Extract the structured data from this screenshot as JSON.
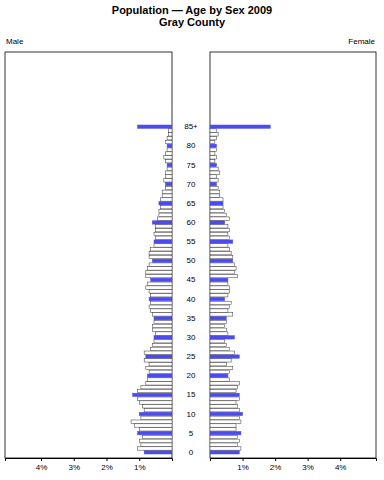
{
  "chart_data": {
    "type": "population_pyramid",
    "title": "Population — Age by Sex 2009",
    "subtitle": "Gray County",
    "categories": [
      "0",
      null,
      null,
      null,
      null,
      "5",
      null,
      null,
      null,
      null,
      "10",
      null,
      null,
      null,
      null,
      "15",
      null,
      null,
      null,
      null,
      "20",
      null,
      null,
      null,
      null,
      "25",
      null,
      null,
      null,
      null,
      "30",
      null,
      null,
      null,
      null,
      "35",
      null,
      null,
      null,
      null,
      "40",
      null,
      null,
      null,
      null,
      "45",
      null,
      null,
      null,
      null,
      "50",
      null,
      null,
      null,
      null,
      "55",
      null,
      null,
      null,
      null,
      "60",
      null,
      null,
      null,
      null,
      "65",
      null,
      null,
      null,
      null,
      "70",
      null,
      null,
      null,
      null,
      "75",
      null,
      null,
      null,
      null,
      "80",
      null,
      null,
      null,
      null,
      "85+"
    ],
    "series": [
      {
        "name": "Male",
        "color": "#4b4bef",
        "values": [
          0.85,
          1.05,
          0.95,
          1.0,
          0.9,
          1.05,
          1.0,
          1.15,
          1.25,
          0.95,
          1.0,
          0.85,
          0.9,
          1.0,
          1.05,
          1.2,
          1.05,
          0.95,
          0.8,
          0.75,
          0.75,
          0.7,
          0.8,
          0.7,
          0.85,
          0.8,
          0.85,
          0.65,
          0.6,
          0.55,
          0.55,
          0.5,
          0.6,
          0.6,
          0.55,
          0.55,
          0.6,
          0.65,
          0.7,
          0.65,
          0.7,
          0.65,
          0.7,
          0.8,
          0.75,
          0.65,
          0.8,
          0.8,
          0.75,
          0.7,
          0.6,
          0.7,
          0.7,
          0.65,
          0.55,
          0.55,
          0.5,
          0.55,
          0.5,
          0.5,
          0.6,
          0.45,
          0.4,
          0.4,
          0.35,
          0.4,
          0.35,
          0.3,
          0.3,
          0.2,
          0.2,
          0.25,
          0.2,
          0.2,
          0.15,
          0.15,
          0.2,
          0.25,
          0.2,
          0.15,
          0.15,
          0.2,
          0.15,
          0.1,
          0.1,
          1.05
        ]
      },
      {
        "name": "Female",
        "color": "#4b4bef",
        "values": [
          0.9,
          0.95,
          0.85,
          0.9,
          0.85,
          0.95,
          0.8,
          0.8,
          0.95,
          0.9,
          1.0,
          0.9,
          0.85,
          0.8,
          0.9,
          0.9,
          0.8,
          0.85,
          0.9,
          0.6,
          0.55,
          0.6,
          0.7,
          0.5,
          0.65,
          0.9,
          0.75,
          0.6,
          0.5,
          0.45,
          0.75,
          0.55,
          0.5,
          0.45,
          0.5,
          0.5,
          0.7,
          0.55,
          0.6,
          0.65,
          0.45,
          0.55,
          0.6,
          0.6,
          0.55,
          0.55,
          0.85,
          0.75,
          0.8,
          0.75,
          0.7,
          0.7,
          0.65,
          0.6,
          0.55,
          0.7,
          0.6,
          0.55,
          0.6,
          0.55,
          0.45,
          0.6,
          0.5,
          0.45,
          0.4,
          0.4,
          0.4,
          0.3,
          0.3,
          0.25,
          0.2,
          0.25,
          0.2,
          0.3,
          0.25,
          0.2,
          0.15,
          0.2,
          0.15,
          0.2,
          0.2,
          0.15,
          0.2,
          0.25,
          0.2,
          1.85
        ]
      }
    ],
    "xlim": [
      0,
      5.1
    ],
    "xticks": [
      {
        "value": 1,
        "label": "1%"
      },
      {
        "value": 2,
        "label": "2%"
      },
      {
        "value": 3,
        "label": "3%"
      },
      {
        "value": 4,
        "label": "4%"
      }
    ]
  }
}
